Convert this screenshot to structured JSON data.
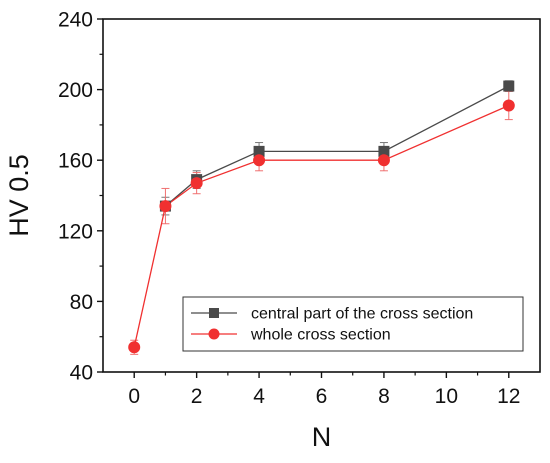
{
  "chart_data": {
    "type": "line",
    "xlabel": "N",
    "ylabel": "HV 0.5",
    "x": [
      0,
      1,
      2,
      4,
      8,
      12
    ],
    "xlim": [
      -1,
      13
    ],
    "ylim": [
      40,
      240
    ],
    "x_ticks": [
      0,
      2,
      4,
      6,
      8,
      10,
      12
    ],
    "y_ticks": [
      40,
      80,
      120,
      160,
      200,
      240
    ],
    "grid": false,
    "legend_position": "lower-right",
    "series": [
      {
        "name": "central part of the cross section",
        "marker": "square",
        "color": "#4a4a4a",
        "x": [
          1,
          2,
          4,
          8,
          12
        ],
        "values": [
          134,
          149,
          165,
          165,
          202
        ],
        "error": [
          5,
          5,
          5,
          5,
          3
        ]
      },
      {
        "name": "whole cross section",
        "marker": "circle",
        "color": "#f03030",
        "x": [
          0,
          1,
          2,
          4,
          8,
          12
        ],
        "values": [
          54,
          134,
          147,
          160,
          160,
          191
        ],
        "error": [
          4,
          10,
          6,
          6,
          6,
          8
        ]
      }
    ]
  }
}
